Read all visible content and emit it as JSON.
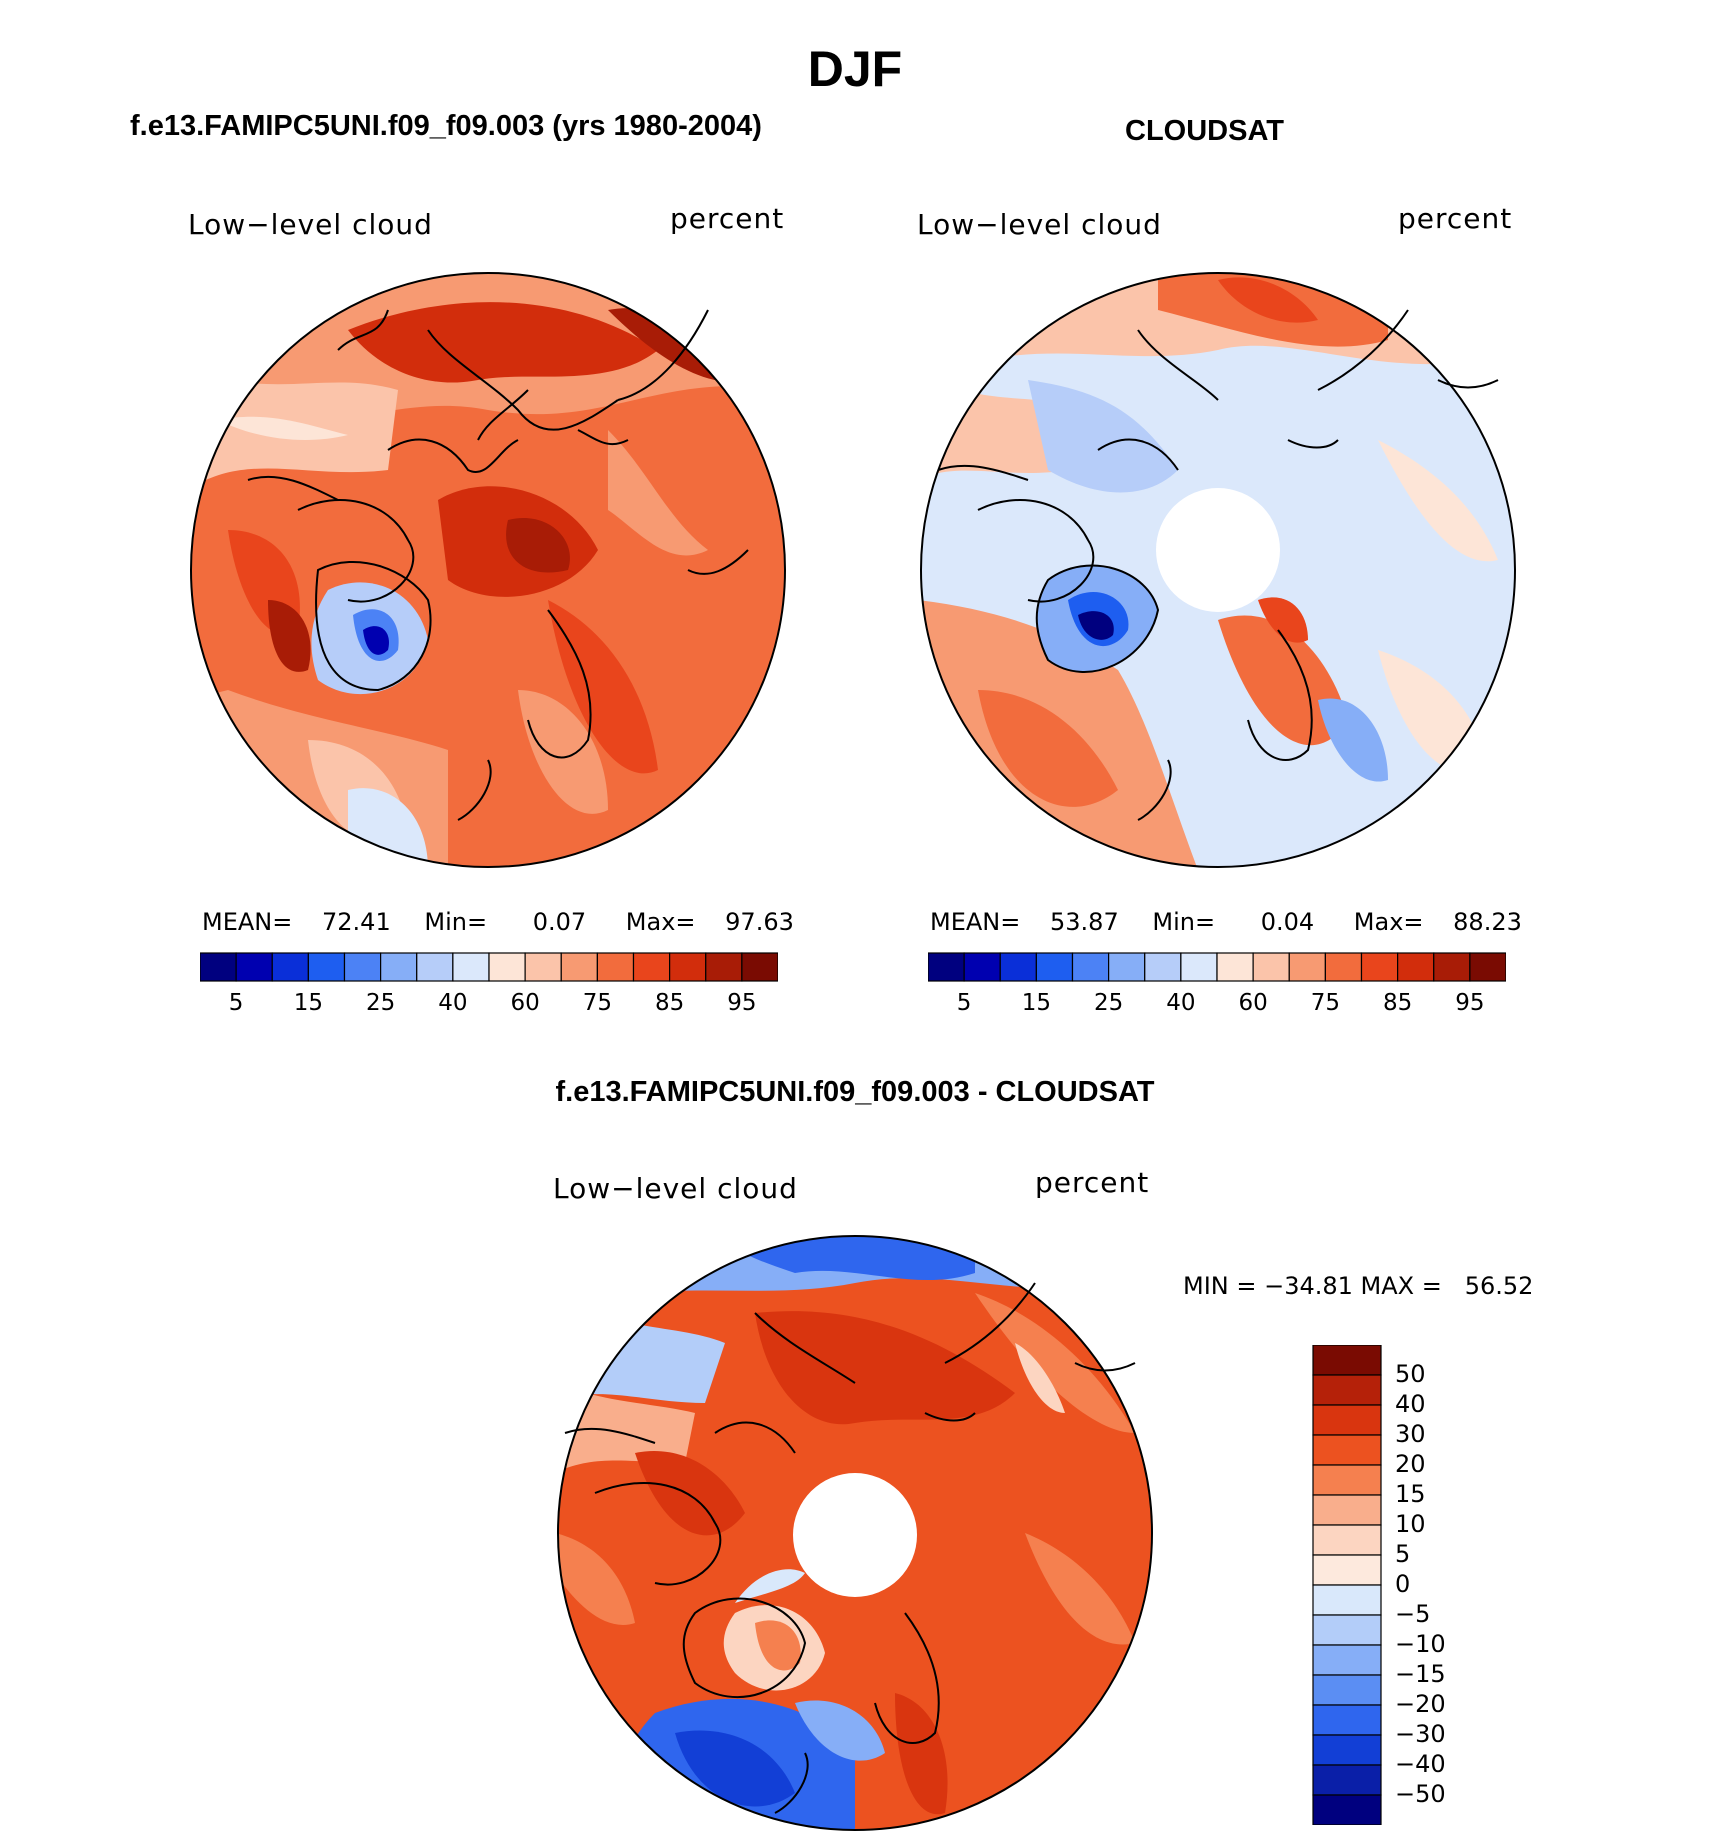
{
  "title": "DJF",
  "panels": {
    "model": {
      "title": "f.e13.FAMIPC5UNI.f09_f09.003 (yrs 1980-2004)",
      "field": "Low−level cloud",
      "units": "percent",
      "mean_label": "MEAN=",
      "mean": "72.41",
      "min_label": "Min=",
      "min": "0.07",
      "max_label": "Max=",
      "max": "97.63"
    },
    "obs": {
      "title": "CLOUDSAT",
      "field": "Low−level cloud",
      "units": "percent",
      "mean_label": "MEAN=",
      "mean": "53.87",
      "min_label": "Min=",
      "min": "0.04",
      "max_label": "Max=",
      "max": "88.23"
    },
    "diff": {
      "title": "f.e13.FAMIPC5UNI.f09_f09.003 - CLOUDSAT",
      "field": "Low−level cloud",
      "units": "percent",
      "minmax_text": "MIN = −34.81 MAX =   56.52"
    }
  },
  "colorbar_abs": {
    "labels": [
      "5",
      "15",
      "25",
      "40",
      "60",
      "75",
      "85",
      "95"
    ],
    "colors": [
      "#00007f",
      "#0000b0",
      "#0a2fd8",
      "#1e5ef0",
      "#4c82f5",
      "#86aef7",
      "#b6cdf9",
      "#dbe8fb",
      "#fde5d7",
      "#fbc4aa",
      "#f79a72",
      "#f26c3d",
      "#e9451c",
      "#d22d0c",
      "#a81c06",
      "#7a0b02"
    ]
  },
  "colorbar_diff": {
    "labels": [
      "50",
      "40",
      "30",
      "20",
      "15",
      "10",
      "5",
      "0",
      "−5",
      "−10",
      "−15",
      "−20",
      "−30",
      "−40",
      "−50"
    ],
    "colors": [
      "#7a0b02",
      "#b52109",
      "#d9350f",
      "#ec5220",
      "#f5804f",
      "#f9ae8c",
      "#fcd5c1",
      "#fde9dd",
      "#d9e8fb",
      "#b3cdf9",
      "#86aef7",
      "#5b8ef3",
      "#2f66ee",
      "#123fd6",
      "#0a1fa8",
      "#00007f"
    ]
  }
}
